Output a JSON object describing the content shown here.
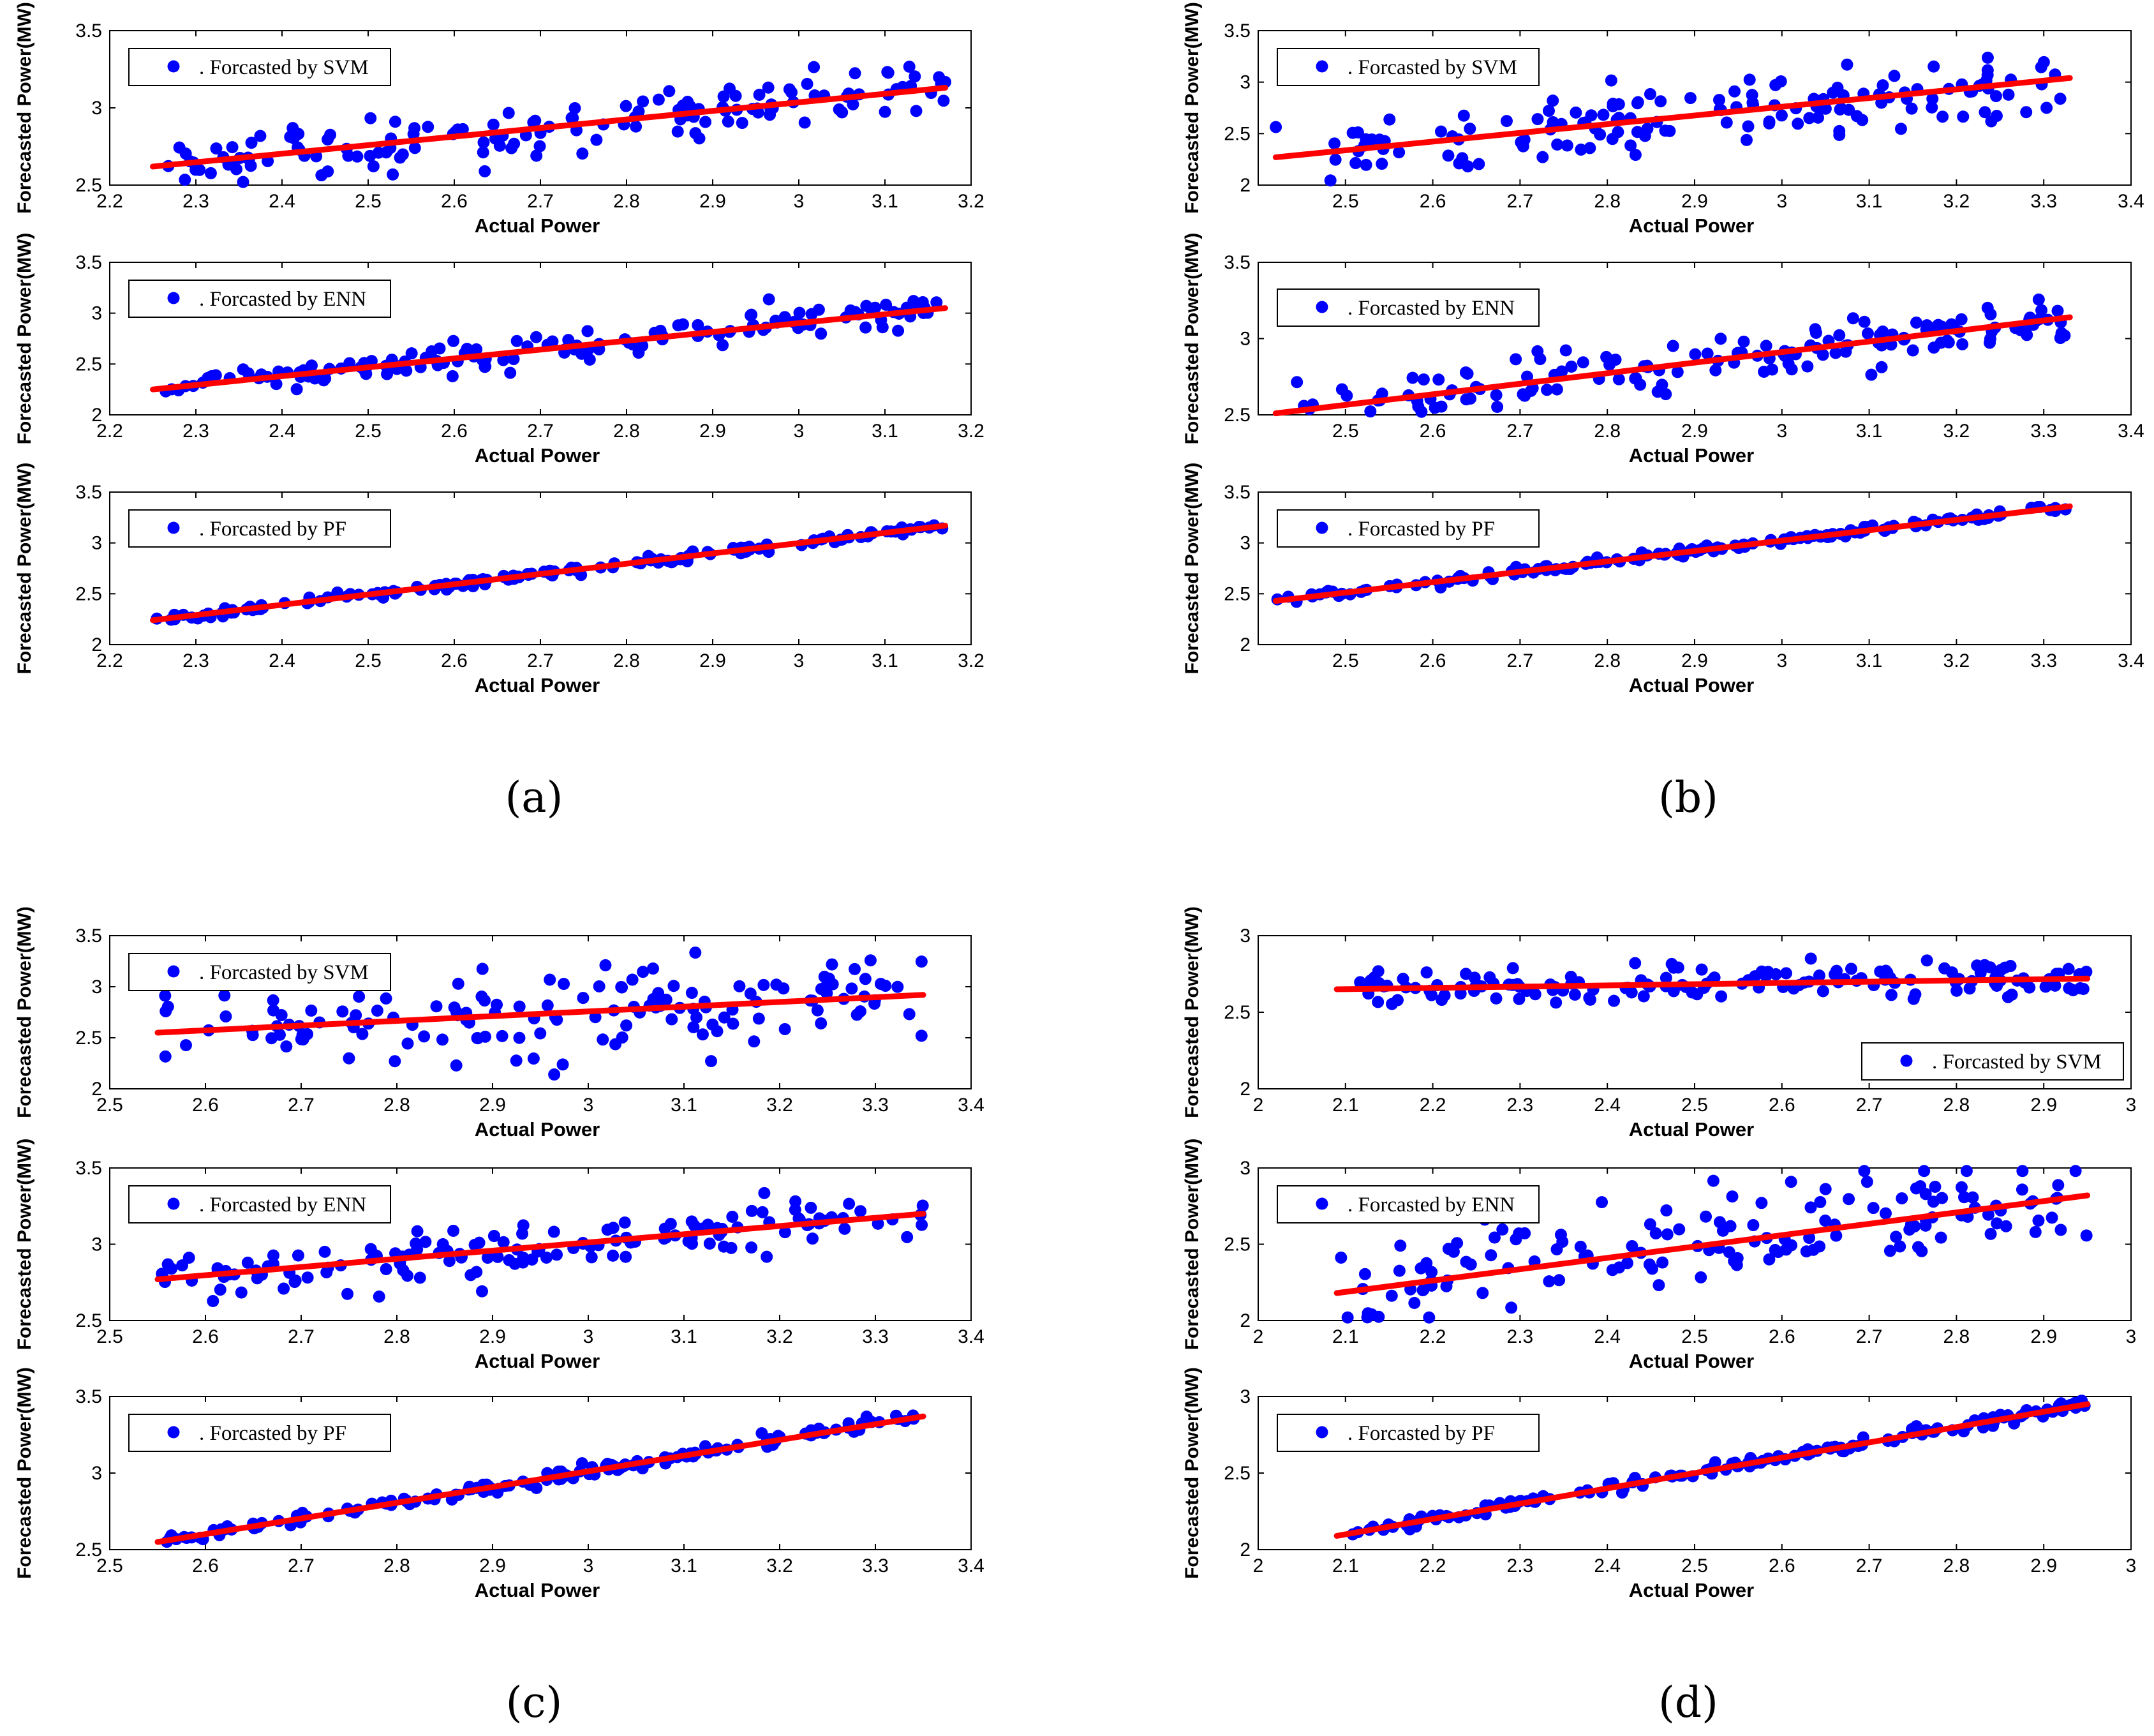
{
  "figure": {
    "axis_x_label": "Actual Power",
    "axis_y_label": "Forecasted Power(MW)",
    "colors": {
      "points": "#0000ff",
      "fit_line": "#ff0000",
      "frame": "#000000"
    }
  },
  "chart_data": [
    {
      "panel": "a",
      "caption": "(a)",
      "subplots": [
        {
          "type": "scatter",
          "legend": ". Forcasted by SVM",
          "xlabel": "Actual Power",
          "ylabel": "Forecasted Power(MW)",
          "xlim": [
            2.2,
            3.2
          ],
          "ylim": [
            2.5,
            3.5
          ],
          "xticks": [
            "2.2",
            "2.3",
            "2.4",
            "2.5",
            "2.6",
            "2.7",
            "2.8",
            "2.9",
            "3",
            "3.1",
            "3.2"
          ],
          "yticks": [
            "2.5",
            "3",
            "3.5"
          ],
          "x_range": [
            2.25,
            3.17
          ],
          "fit": [
            2.62,
            3.13
          ],
          "noise": 0.09,
          "n": 150,
          "seed": 11
        },
        {
          "type": "scatter",
          "legend": ". Forcasted by ENN",
          "xlabel": "Actual Power",
          "ylabel": "Forecasted Power(MW)",
          "xlim": [
            2.2,
            3.2
          ],
          "ylim": [
            2,
            3.5
          ],
          "xticks": [
            "2.2",
            "2.3",
            "2.4",
            "2.5",
            "2.6",
            "2.7",
            "2.8",
            "2.9",
            "3",
            "3.1",
            "3.2"
          ],
          "yticks": [
            "2",
            "2.5",
            "3",
            "3.5"
          ],
          "x_range": [
            2.25,
            3.17
          ],
          "fit": [
            2.25,
            3.05
          ],
          "noise": 0.07,
          "n": 150,
          "seed": 12
        },
        {
          "type": "scatter",
          "legend": ". Forcasted by PF",
          "xlabel": "Actual Power",
          "ylabel": "Forecasted Power(MW)",
          "xlim": [
            2.2,
            3.2
          ],
          "ylim": [
            2,
            3.5
          ],
          "xticks": [
            "2.2",
            "2.3",
            "2.4",
            "2.5",
            "2.6",
            "2.7",
            "2.8",
            "2.9",
            "3",
            "3.1",
            "3.2"
          ],
          "yticks": [
            "2",
            "2.5",
            "3",
            "3.5"
          ],
          "x_range": [
            2.25,
            3.17
          ],
          "fit": [
            2.24,
            3.17
          ],
          "noise": 0.02,
          "n": 150,
          "seed": 13
        }
      ]
    },
    {
      "panel": "b",
      "caption": "(b)",
      "subplots": [
        {
          "type": "scatter",
          "legend": ". Forcasted by SVM",
          "xlabel": "Actual Power",
          "ylabel": "Forecasted Power(MW)",
          "xlim": [
            2.4,
            3.4
          ],
          "ylim": [
            2,
            3.5
          ],
          "xticks": [
            "2.5",
            "2.6",
            "2.7",
            "2.8",
            "2.9",
            "3",
            "3.1",
            "3.2",
            "3.3",
            "3.4"
          ],
          "yticks": [
            "2",
            "2.5",
            "3",
            "3.5"
          ],
          "x_range": [
            2.42,
            3.33
          ],
          "fit": [
            2.27,
            3.04
          ],
          "noise": 0.17,
          "n": 150,
          "seed": 21
        },
        {
          "type": "scatter",
          "legend": ". Forcasted by ENN",
          "xlabel": "Actual Power",
          "ylabel": "Forecasted Power(MW)",
          "xlim": [
            2.4,
            3.4
          ],
          "ylim": [
            2.5,
            3.5
          ],
          "xticks": [
            "2.5",
            "2.6",
            "2.7",
            "2.8",
            "2.9",
            "3",
            "3.1",
            "3.2",
            "3.3",
            "3.4"
          ],
          "yticks": [
            "2.5",
            "3",
            "3.5"
          ],
          "x_range": [
            2.42,
            3.33
          ],
          "fit": [
            2.51,
            3.14
          ],
          "noise": 0.08,
          "n": 150,
          "seed": 22
        },
        {
          "type": "scatter",
          "legend": ". Forcasted by PF",
          "xlabel": "Actual Power",
          "ylabel": "Forecasted Power(MW)",
          "xlim": [
            2.4,
            3.4
          ],
          "ylim": [
            2,
            3.5
          ],
          "xticks": [
            "2.5",
            "2.6",
            "2.7",
            "2.8",
            "2.9",
            "3",
            "3.1",
            "3.2",
            "3.3",
            "3.4"
          ],
          "yticks": [
            "2",
            "2.5",
            "3",
            "3.5"
          ],
          "x_range": [
            2.42,
            3.33
          ],
          "fit": [
            2.43,
            3.36
          ],
          "noise": 0.02,
          "n": 150,
          "seed": 23
        }
      ]
    },
    {
      "panel": "c",
      "caption": "(c)",
      "subplots": [
        {
          "type": "scatter",
          "legend": ". Forcasted by SVM",
          "xlabel": "Actual Power",
          "ylabel": "Forecasted Power(MW)",
          "xlim": [
            2.5,
            3.4
          ],
          "ylim": [
            2,
            3.5
          ],
          "xticks": [
            "2.5",
            "2.6",
            "2.7",
            "2.8",
            "2.9",
            "3",
            "3.1",
            "3.2",
            "3.3",
            "3.4"
          ],
          "yticks": [
            "2",
            "2.5",
            "3",
            "3.5"
          ],
          "x_range": [
            2.55,
            3.35
          ],
          "fit": [
            2.55,
            2.92
          ],
          "noise": 0.2,
          "n": 150,
          "seed": 31
        },
        {
          "type": "scatter",
          "legend": ". Forcasted by ENN",
          "xlabel": "Actual Power",
          "ylabel": "Forecasted Power(MW)",
          "xlim": [
            2.5,
            3.4
          ],
          "ylim": [
            2.5,
            3.5
          ],
          "xticks": [
            "2.5",
            "2.6",
            "2.7",
            "2.8",
            "2.9",
            "3",
            "3.1",
            "3.2",
            "3.3",
            "3.4"
          ],
          "yticks": [
            "2.5",
            "3",
            "3.5"
          ],
          "x_range": [
            2.55,
            3.35
          ],
          "fit": [
            2.77,
            3.2
          ],
          "noise": 0.08,
          "n": 150,
          "seed": 32
        },
        {
          "type": "scatter",
          "legend": ". Forcasted by PF",
          "xlabel": "Actual Power",
          "ylabel": "Forecasted Power(MW)",
          "xlim": [
            2.5,
            3.4
          ],
          "ylim": [
            2.5,
            3.5
          ],
          "xticks": [
            "2.5",
            "2.6",
            "2.7",
            "2.8",
            "2.9",
            "3",
            "3.1",
            "3.2",
            "3.3",
            "3.4"
          ],
          "yticks": [
            "2.5",
            "3",
            "3.5"
          ],
          "x_range": [
            2.55,
            3.35
          ],
          "fit": [
            2.55,
            3.37
          ],
          "noise": 0.02,
          "n": 150,
          "seed": 33
        }
      ]
    },
    {
      "panel": "d",
      "caption": "(d)",
      "subplots": [
        {
          "type": "scatter",
          "legend": ". Forcasted by SVM",
          "xlabel": "Actual Power",
          "ylabel": "Forecasted Power(MW)",
          "xlim": [
            2,
            3
          ],
          "ylim": [
            2,
            3
          ],
          "xticks": [
            "2",
            "2.1",
            "2.2",
            "2.3",
            "2.4",
            "2.5",
            "2.6",
            "2.7",
            "2.8",
            "2.9",
            "3"
          ],
          "yticks": [
            "2",
            "2.5",
            "3"
          ],
          "x_range": [
            2.09,
            2.95
          ],
          "fit": [
            2.65,
            2.72
          ],
          "noise": 0.06,
          "n": 150,
          "seed": 41,
          "legend_position": "bottom-right"
        },
        {
          "type": "scatter",
          "legend": ". Forcasted by ENN",
          "xlabel": "Actual Power",
          "ylabel": "Forecasted Power(MW)",
          "xlim": [
            2,
            3
          ],
          "ylim": [
            2,
            3
          ],
          "xticks": [
            "2",
            "2.1",
            "2.2",
            "2.3",
            "2.4",
            "2.5",
            "2.6",
            "2.7",
            "2.8",
            "2.9",
            "3"
          ],
          "yticks": [
            "2",
            "2.5",
            "3"
          ],
          "x_range": [
            2.09,
            2.95
          ],
          "fit": [
            2.18,
            2.82
          ],
          "noise": 0.15,
          "n": 150,
          "seed": 42
        },
        {
          "type": "scatter",
          "legend": ". Forcasted by PF",
          "xlabel": "Actual Power",
          "ylabel": "Forecasted Power(MW)",
          "xlim": [
            2,
            3
          ],
          "ylim": [
            2,
            3
          ],
          "xticks": [
            "2",
            "2.1",
            "2.2",
            "2.3",
            "2.4",
            "2.5",
            "2.6",
            "2.7",
            "2.8",
            "2.9",
            "3"
          ],
          "yticks": [
            "2",
            "2.5",
            "3"
          ],
          "x_range": [
            2.09,
            2.95
          ],
          "fit": [
            2.09,
            2.95
          ],
          "noise": 0.02,
          "n": 150,
          "seed": 43
        }
      ]
    }
  ]
}
